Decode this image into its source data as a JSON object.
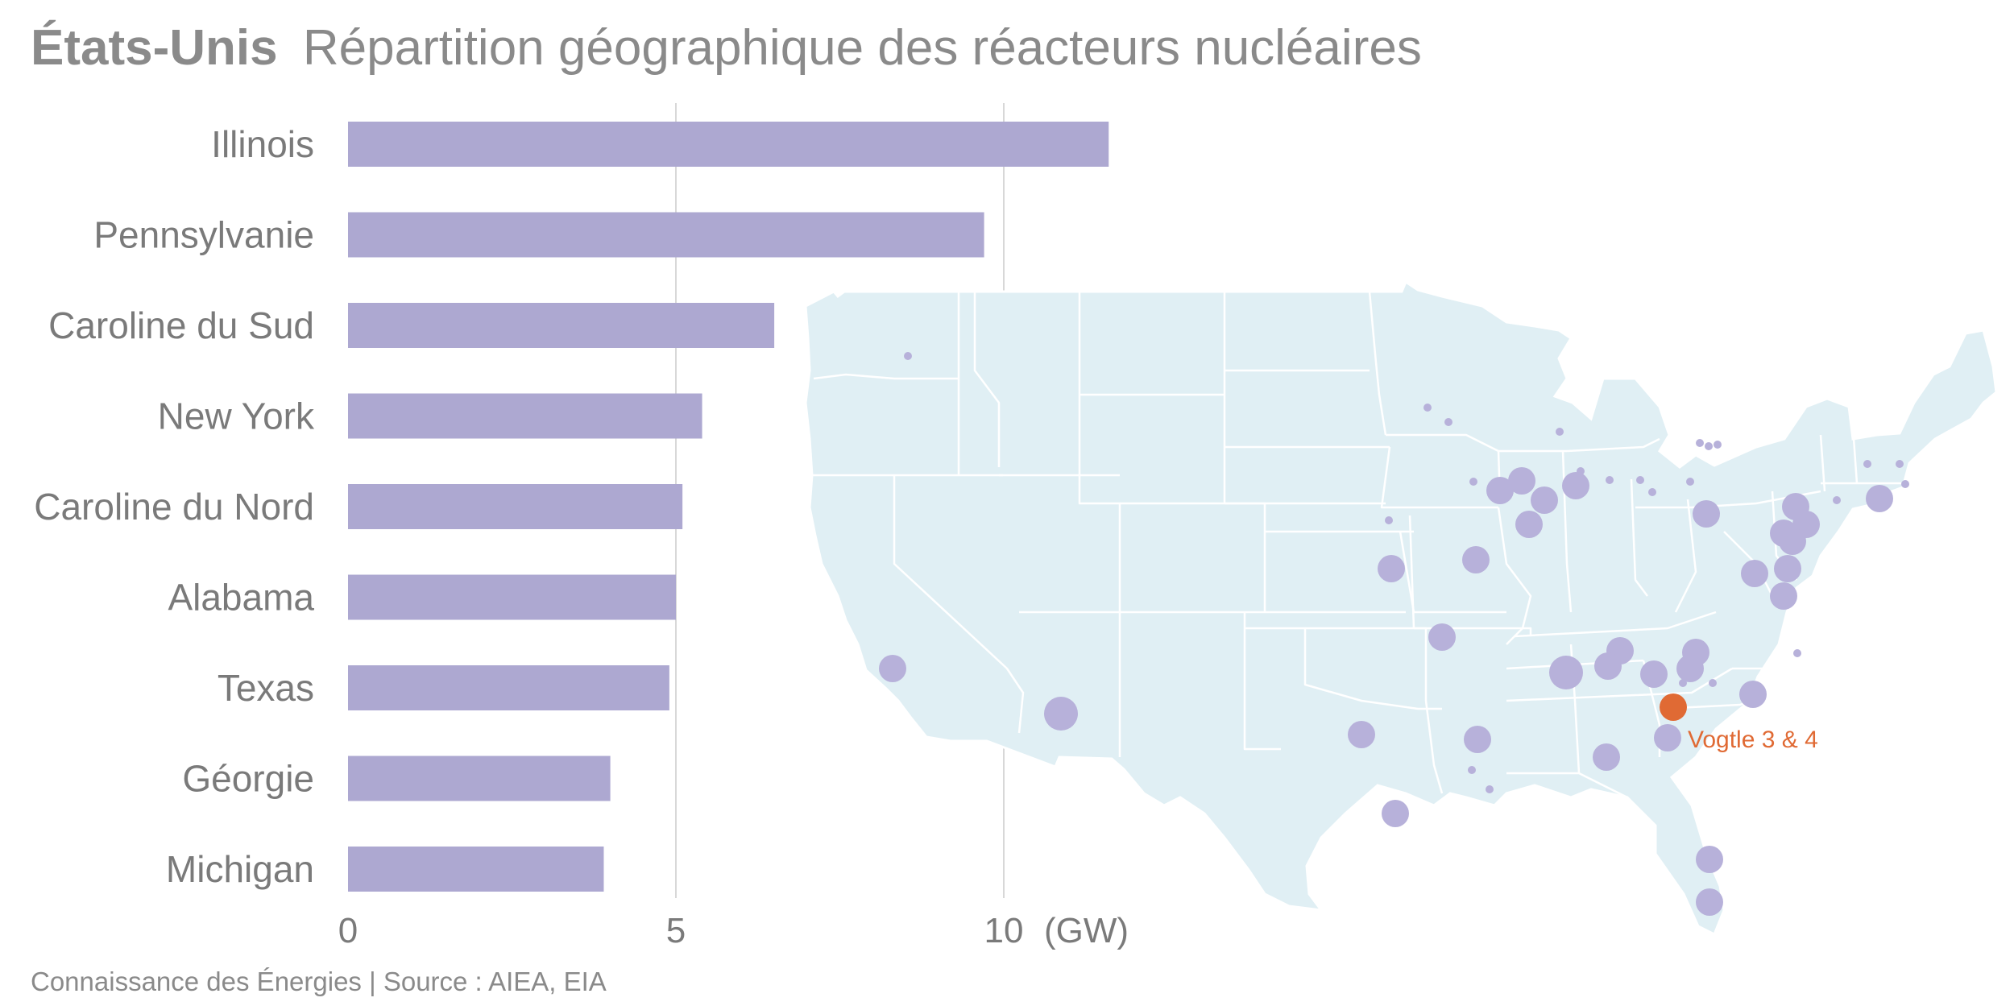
{
  "header": {
    "title_bold": "États-Unis",
    "title_rest": "Répartition géographique des réacteurs nucléaires"
  },
  "chart_data": {
    "type": "bar",
    "orientation": "horizontal",
    "categories": [
      "Illinois",
      "Pennsylvanie",
      "Caroline du Sud",
      "New York",
      "Caroline du Nord",
      "Alabama",
      "Texas",
      "Géorgie",
      "Michigan"
    ],
    "values": [
      11.6,
      9.7,
      6.5,
      5.4,
      5.1,
      5.0,
      4.9,
      4.0,
      3.9
    ],
    "unit_label": "(GW)",
    "xlim": [
      0,
      12
    ],
    "xticks": [
      0,
      5,
      10
    ],
    "grid": true,
    "bar_color": "#ada8d1"
  },
  "map": {
    "land_color": "#e0eff4",
    "border_color": "#ffffff",
    "plant_color": "#b7b1da",
    "highlight_color": "#e06a34",
    "highlight_label": "Vogtle 3 & 4"
  },
  "footer": {
    "credit": "Connaissance des Énergies | Source : AIEA, EIA"
  }
}
